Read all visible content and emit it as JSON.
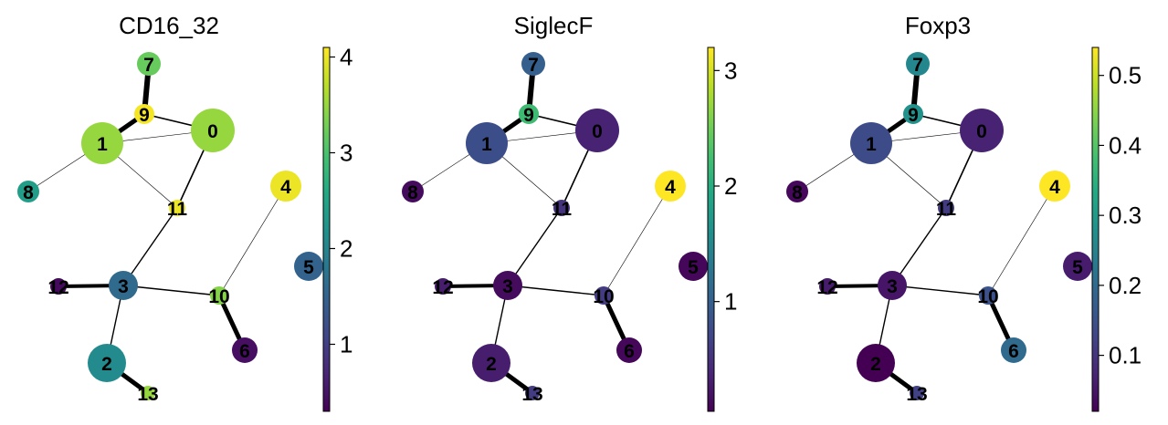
{
  "chart_data": {
    "type": "graph",
    "nodes": [
      "0",
      "1",
      "2",
      "3",
      "4",
      "5",
      "6",
      "7",
      "8",
      "9",
      "10",
      "11",
      "12",
      "13"
    ],
    "node_positions": {
      "0": [
        233,
        143
      ],
      "1": [
        112,
        157
      ],
      "2": [
        117,
        398
      ],
      "3": [
        135,
        313
      ],
      "4": [
        313,
        204
      ],
      "5": [
        338,
        292
      ],
      "6": [
        268,
        384
      ],
      "7": [
        163,
        70
      ],
      "8": [
        31,
        210
      ],
      "9": [
        158,
        125
      ],
      "10": [
        240,
        324
      ],
      "11": [
        194,
        228
      ],
      "12": [
        64,
        314
      ],
      "13": [
        162,
        431
      ]
    },
    "node_sizes": {
      "0": 24,
      "1": 23,
      "2": 21,
      "3": 16,
      "4": 17,
      "5": 16,
      "6": 14,
      "7": 13,
      "8": 12,
      "9": 11,
      "10": 10,
      "11": 9,
      "12": 9,
      "13": 8
    },
    "edges": [
      {
        "a": "7",
        "b": "9",
        "w": 6
      },
      {
        "a": "9",
        "b": "1",
        "w": 5
      },
      {
        "a": "9",
        "b": "0",
        "w": 1.6
      },
      {
        "a": "1",
        "b": "0",
        "w": 0.6
      },
      {
        "a": "1",
        "b": "8",
        "w": 0.6
      },
      {
        "a": "1",
        "b": "11",
        "w": 0.6
      },
      {
        "a": "0",
        "b": "11",
        "w": 1.6
      },
      {
        "a": "11",
        "b": "3",
        "w": 1.4
      },
      {
        "a": "3",
        "b": "12",
        "w": 4
      },
      {
        "a": "3",
        "b": "10",
        "w": 1.4
      },
      {
        "a": "3",
        "b": "2",
        "w": 1.4
      },
      {
        "a": "2",
        "b": "13",
        "w": 5
      },
      {
        "a": "10",
        "b": "6",
        "w": 5
      },
      {
        "a": "10",
        "b": "4",
        "w": 0.6
      }
    ],
    "panels": [
      {
        "title": "CD16_32",
        "vmin": 0.3,
        "vmax": 4.1,
        "ticks": [
          1,
          2,
          3,
          4
        ],
        "tick_labels": [
          "1",
          "2",
          "3",
          "4"
        ],
        "values": {
          "0": 3.5,
          "1": 3.5,
          "2": 2.1,
          "3": 1.6,
          "4": 4.0,
          "5": 1.5,
          "6": 0.45,
          "7": 3.2,
          "8": 2.4,
          "9": 4.05,
          "10": 3.4,
          "11": 4.0,
          "12": 0.4,
          "13": 3.5
        }
      },
      {
        "title": "SiglecF",
        "vmin": 0.05,
        "vmax": 3.2,
        "ticks": [
          1,
          2,
          3
        ],
        "tick_labels": [
          "1",
          "2",
          "3"
        ],
        "values": {
          "0": 0.35,
          "1": 0.8,
          "2": 0.3,
          "3": 0.15,
          "4": 3.2,
          "5": 0.1,
          "6": 0.1,
          "7": 1.0,
          "8": 0.15,
          "9": 2.2,
          "10": 0.6,
          "11": 0.5,
          "12": 0.3,
          "13": 0.6
        }
      },
      {
        "title": "Foxp3",
        "vmin": 0.02,
        "vmax": 0.54,
        "ticks": [
          0.1,
          0.2,
          0.3,
          0.4,
          0.5
        ],
        "tick_labels": [
          "0.1",
          "0.2",
          "0.3",
          "0.4",
          "0.5"
        ],
        "values": {
          "0": 0.07,
          "1": 0.14,
          "2": 0.02,
          "3": 0.05,
          "4": 0.54,
          "5": 0.06,
          "6": 0.2,
          "7": 0.26,
          "8": 0.03,
          "9": 0.28,
          "10": 0.15,
          "11": 0.11,
          "12": 0.06,
          "13": 0.12
        }
      }
    ],
    "colormap": "viridis"
  }
}
